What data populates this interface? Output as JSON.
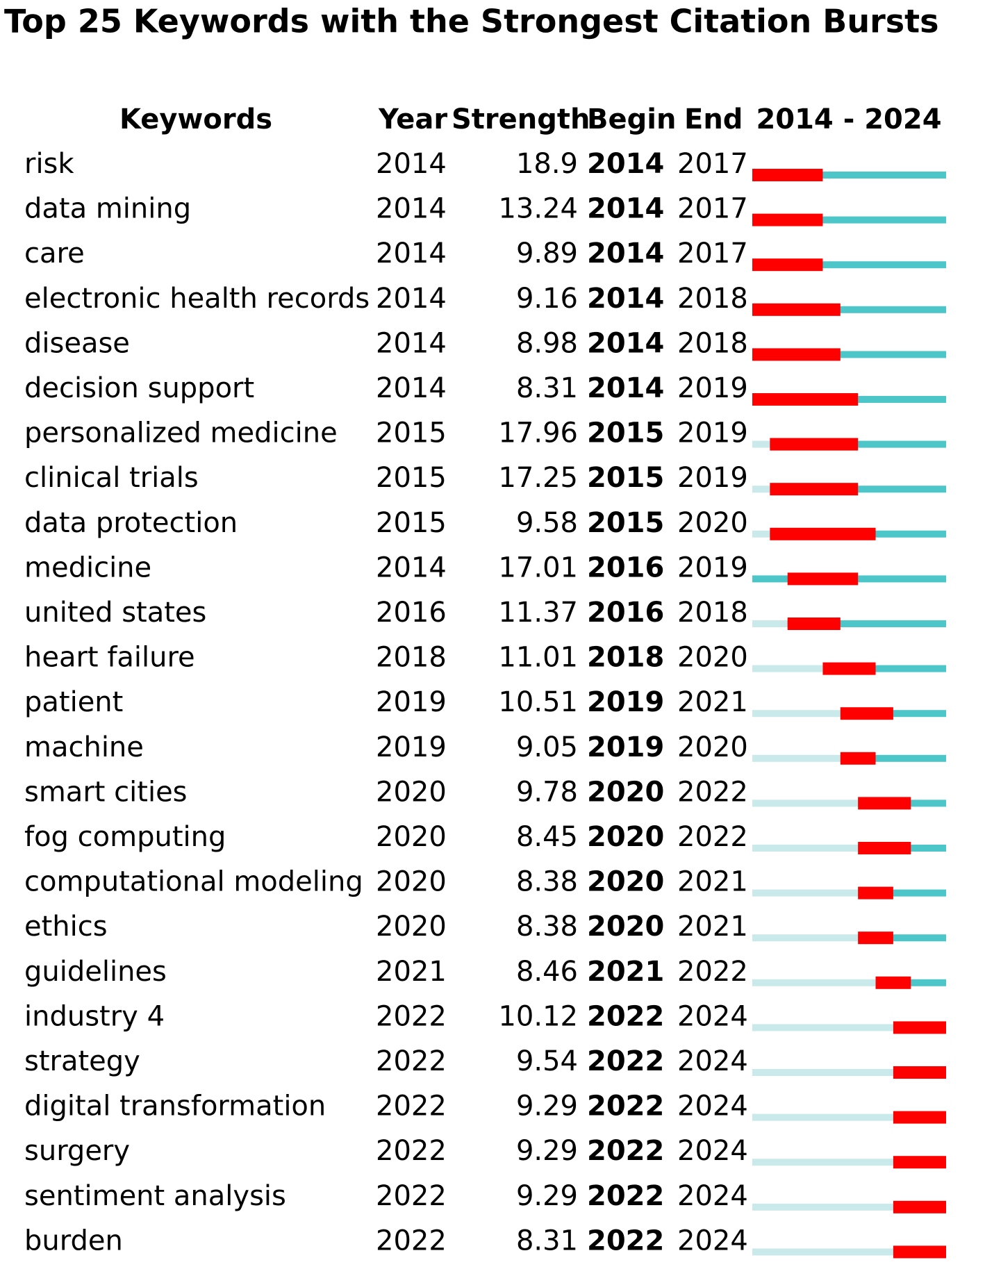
{
  "title": "Top 25 Keywords with the Strongest Citation Bursts",
  "columns": [
    "Keywords",
    "Year",
    "Strength",
    "Begin",
    "End",
    "2014 - 2024"
  ],
  "rows": [
    {
      "keyword": "risk",
      "year": 2014,
      "strength": 18.9,
      "begin": 2014,
      "end": 2017
    },
    {
      "keyword": "data mining",
      "year": 2014,
      "strength": 13.24,
      "begin": 2014,
      "end": 2017
    },
    {
      "keyword": "care",
      "year": 2014,
      "strength": 9.89,
      "begin": 2014,
      "end": 2017
    },
    {
      "keyword": "electronic health records",
      "year": 2014,
      "strength": 9.16,
      "begin": 2014,
      "end": 2018
    },
    {
      "keyword": "disease",
      "year": 2014,
      "strength": 8.98,
      "begin": 2014,
      "end": 2018
    },
    {
      "keyword": "decision support",
      "year": 2014,
      "strength": 8.31,
      "begin": 2014,
      "end": 2019
    },
    {
      "keyword": "personalized medicine",
      "year": 2015,
      "strength": 17.96,
      "begin": 2015,
      "end": 2019
    },
    {
      "keyword": "clinical trials",
      "year": 2015,
      "strength": 17.25,
      "begin": 2015,
      "end": 2019
    },
    {
      "keyword": "data protection",
      "year": 2015,
      "strength": 9.58,
      "begin": 2015,
      "end": 2020
    },
    {
      "keyword": "medicine",
      "year": 2014,
      "strength": 17.01,
      "begin": 2016,
      "end": 2019
    },
    {
      "keyword": "united states",
      "year": 2016,
      "strength": 11.37,
      "begin": 2016,
      "end": 2018
    },
    {
      "keyword": "heart failure",
      "year": 2018,
      "strength": 11.01,
      "begin": 2018,
      "end": 2020
    },
    {
      "keyword": "patient",
      "year": 2019,
      "strength": 10.51,
      "begin": 2019,
      "end": 2021
    },
    {
      "keyword": "machine",
      "year": 2019,
      "strength": 9.05,
      "begin": 2019,
      "end": 2020
    },
    {
      "keyword": "smart cities",
      "year": 2020,
      "strength": 9.78,
      "begin": 2020,
      "end": 2022
    },
    {
      "keyword": "fog computing",
      "year": 2020,
      "strength": 8.45,
      "begin": 2020,
      "end": 2022
    },
    {
      "keyword": "computational modeling",
      "year": 2020,
      "strength": 8.38,
      "begin": 2020,
      "end": 2021
    },
    {
      "keyword": "ethics",
      "year": 2020,
      "strength": 8.38,
      "begin": 2020,
      "end": 2021
    },
    {
      "keyword": "guidelines",
      "year": 2021,
      "strength": 8.46,
      "begin": 2021,
      "end": 2022
    },
    {
      "keyword": "industry 4",
      "year": 2022,
      "strength": 10.12,
      "begin": 2022,
      "end": 2024
    },
    {
      "keyword": "strategy",
      "year": 2022,
      "strength": 9.54,
      "begin": 2022,
      "end": 2024
    },
    {
      "keyword": "digital transformation",
      "year": 2022,
      "strength": 9.29,
      "begin": 2022,
      "end": 2024
    },
    {
      "keyword": "surgery",
      "year": 2022,
      "strength": 9.29,
      "begin": 2022,
      "end": 2024
    },
    {
      "keyword": "sentiment analysis",
      "year": 2022,
      "strength": 9.29,
      "begin": 2022,
      "end": 2024
    },
    {
      "keyword": "burden",
      "year": 2022,
      "strength": 8.31,
      "begin": 2022,
      "end": 2024
    }
  ]
}
